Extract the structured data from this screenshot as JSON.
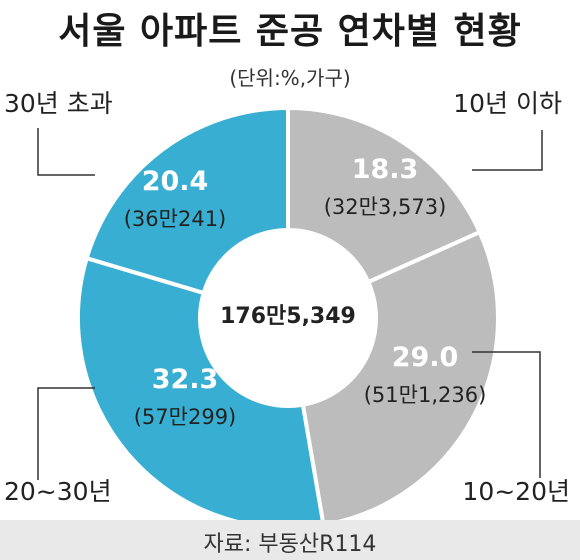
{
  "chart_data": {
    "type": "pie",
    "title": "서울 아파트 준공 연차별 현황",
    "unit": "(단위:%,가구)",
    "center_label": "176만5,349",
    "source": "자료: 부동산R114",
    "slices": [
      {
        "label": "10년 이하",
        "value": 18.3,
        "value_label": "18.3",
        "count": "(32만3,573)",
        "color": "#bcbcbc"
      },
      {
        "label": "10~20년",
        "value": 29.0,
        "value_label": "29.0",
        "count": "(51만1,236)",
        "color": "#bcbcbc"
      },
      {
        "label": "20~30년",
        "value": 32.3,
        "value_label": "32.3",
        "count": "(57만299)",
        "color": "#38afd2"
      },
      {
        "label": "30년 초과",
        "value": 20.4,
        "value_label": "20.4",
        "count": "(36만241)",
        "color": "#38afd2"
      }
    ],
    "colors": {
      "value_text": "#ffffff",
      "count_text": "#222222",
      "leader": "#333333"
    }
  }
}
